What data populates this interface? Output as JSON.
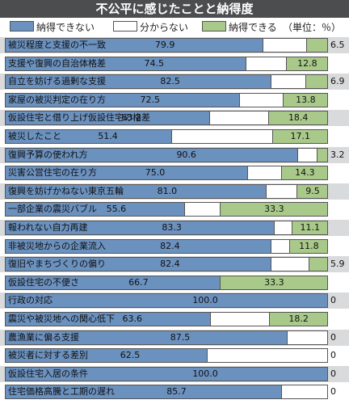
{
  "colors": {
    "blue": "#6b91bf",
    "grey": "#ffffff",
    "green": "#a9c98a"
  },
  "chart_data": {
    "type": "bar",
    "orientation": "horizontal",
    "stacked": true,
    "title": "不公平に感じたことと納得度",
    "unit": "（単位：％）",
    "xlim": [
      0,
      100
    ],
    "legend_position": "top",
    "series": [
      {
        "name": "納得できない"
      },
      {
        "name": "分からない"
      },
      {
        "name": "納得できる"
      }
    ],
    "categories": [
      "被災程度と支援の不一致",
      "支援や復興の自治体格差",
      "自立を妨げる過剰な支援",
      "家屋の被災判定の在り方",
      "仮設住宅と借り上げ仮設住宅の格差",
      "被災したこと",
      "復興予算の使われ方",
      "災害公営住宅の在り方",
      "復興を妨げかねない東京五輪",
      "一部企業の震災バブル",
      "報われない自力再建",
      "非被災地からの企業流入",
      "復旧やまちづくりの偏り",
      "仮設住宅の不便さ",
      "行政の対応",
      "震災や被災地への関心低下",
      "農漁業に偏る支援",
      "被災者に対する差別",
      "仮設住宅入居の条件",
      "住宅価格高騰と工期の遅れ"
    ],
    "rows": [
      {
        "a": 79.9,
        "c": 6.5,
        "a_label": "79.9",
        "c_label": "6.5"
      },
      {
        "a": 74.5,
        "c": 12.8,
        "a_label": "74.5",
        "c_label": "12.8"
      },
      {
        "a": 82.5,
        "c": 6.9,
        "a_label": "82.5",
        "c_label": "6.9"
      },
      {
        "a": 72.5,
        "c": 13.8,
        "a_label": "72.5",
        "c_label": "13.8"
      },
      {
        "a": 63.2,
        "c": 18.4,
        "a_label": "63.2",
        "c_label": "18.4"
      },
      {
        "a": 51.4,
        "c": 17.1,
        "a_label": "51.4",
        "c_label": "17.1"
      },
      {
        "a": 90.6,
        "c": 3.2,
        "a_label": "90.6",
        "c_label": "3.2"
      },
      {
        "a": 75.0,
        "c": 14.3,
        "a_label": "75.0",
        "c_label": "14.3"
      },
      {
        "a": 81.0,
        "c": 9.5,
        "a_label": "81.0",
        "c_label": "9.5"
      },
      {
        "a": 55.6,
        "c": 33.3,
        "a_label": "55.6",
        "c_label": "33.3"
      },
      {
        "a": 83.3,
        "c": 11.1,
        "a_label": "83.3",
        "c_label": "11.1"
      },
      {
        "a": 82.4,
        "c": 11.8,
        "a_label": "82.4",
        "c_label": "11.8"
      },
      {
        "a": 82.4,
        "c": 5.9,
        "a_label": "82.4",
        "c_label": "5.9"
      },
      {
        "a": 66.7,
        "c": 33.3,
        "a_label": "66.7",
        "c_label": "33.3"
      },
      {
        "a": 100.0,
        "c": 0,
        "a_label": "100.0",
        "c_label": "0"
      },
      {
        "a": 63.6,
        "c": 18.2,
        "a_label": "63.6",
        "c_label": "18.2"
      },
      {
        "a": 87.5,
        "c": 0,
        "a_label": "87.5",
        "c_label": "0"
      },
      {
        "a": 62.5,
        "c": 0,
        "a_label": "62.5",
        "c_label": "0"
      },
      {
        "a": 100.0,
        "c": 0,
        "a_label": "100.0",
        "c_label": "0"
      },
      {
        "a": 85.7,
        "c": 0,
        "a_label": "85.7",
        "c_label": "0"
      }
    ]
  }
}
